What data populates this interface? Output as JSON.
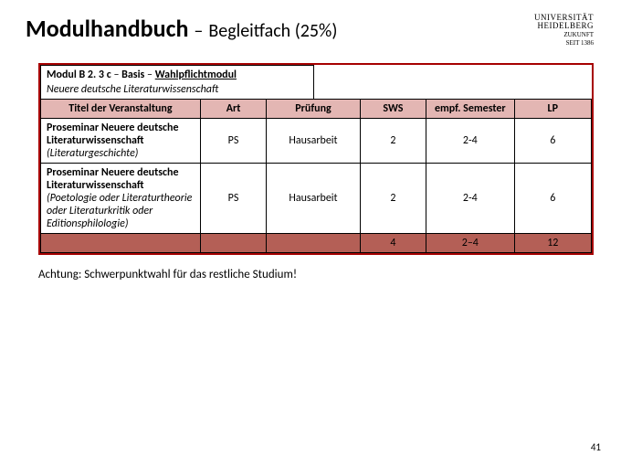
{
  "header": {
    "main": "Modulhandbuch",
    "dash": "–",
    "sub": "Begleitfach (25%)",
    "logo": {
      "line1": "UNIVERSITÄT",
      "line2": "HEIDELBERG",
      "sub1": "ZUKUNFT",
      "sub2": "SEIT 1386"
    }
  },
  "module": {
    "code": "Modul B 2. 3 c",
    "dash": " – ",
    "kind": "Basis",
    "dash2": " – ",
    "opt": "Wahlpflichtmodul",
    "subject": "Neuere deutsche Literaturwissenschaft"
  },
  "table": {
    "headers": {
      "c1": "Titel der Veranstaltung",
      "c2": "Art",
      "c3": "Prüfung",
      "c4": "SWS",
      "c5": "empf. Semester",
      "c6": "LP"
    },
    "rows": [
      {
        "title_bold": "Proseminar Neuere deutsche Literaturwissenschaft",
        "title_italic": "(Literaturgeschichte)",
        "art": "PS",
        "pruef": "Hausarbeit",
        "sws": "2",
        "sem": "2-4",
        "lp": "6"
      },
      {
        "title_bold": "Proseminar Neuere deutsche Literaturwissenschaft",
        "title_italic": "(Poetologie oder Literaturtheorie oder Literaturkritik oder Editionsphilologie)",
        "art": "PS",
        "pruef": "Hausarbeit",
        "sws": "2",
        "sem": "2-4",
        "lp": "6"
      }
    ],
    "total": {
      "sws": "4",
      "sem": "2–4",
      "lp": "12"
    }
  },
  "note": "Achtung: Schwerpunktwahl für das restliche Studium!",
  "page": "41",
  "colors": {
    "outer_border": "#a60000",
    "header_row_bg": "#e3b6b3",
    "total_row_bg": "#b45f56"
  }
}
